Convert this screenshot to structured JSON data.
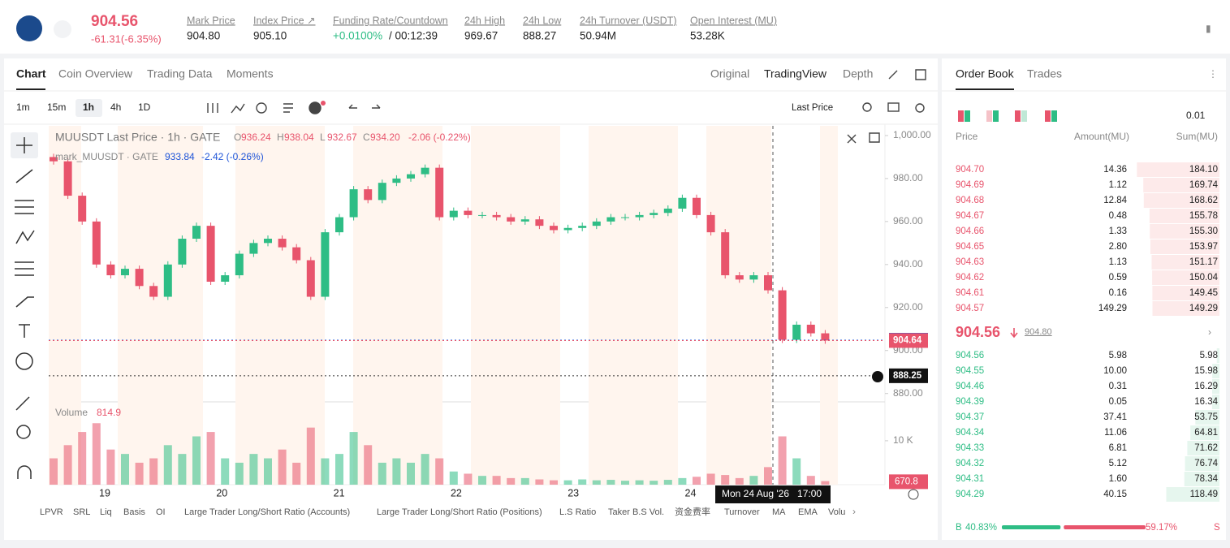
{
  "header": {
    "symbol_price": "904.56",
    "change": "-61.31(-6.35%)",
    "stats": [
      {
        "label": "Mark Price",
        "value": "904.80"
      },
      {
        "label": "Index Price ↗",
        "value": "905.10"
      },
      {
        "label": "Funding Rate/Countdown",
        "value": "+0.0100%",
        "extra": "/ 00:12:39"
      },
      {
        "label": "24h High",
        "value": "969.67"
      },
      {
        "label": "24h Low",
        "value": "888.27"
      },
      {
        "label": "24h Turnover (USDT)",
        "value": "50.94M"
      },
      {
        "label": "Open Interest (MU)",
        "value": "53.28K"
      }
    ]
  },
  "tabs": [
    "Chart",
    "Coin Overview",
    "Trading Data",
    "Moments"
  ],
  "views": [
    "Original",
    "TradingView",
    "Depth"
  ],
  "intervals": [
    "1m",
    "15m",
    "1h",
    "4h",
    "1D"
  ],
  "price_type": "Last Price",
  "chart": {
    "legend": "MUUSDT Last Price · 1h · GATE",
    "ohlc": [
      {
        "k": "O",
        "v": "936.24"
      },
      {
        "k": "H",
        "v": "938.04"
      },
      {
        "k": "L",
        "v": "932.67"
      },
      {
        "k": "C",
        "v": "934.20"
      }
    ],
    "change": "-2.06 (-0.22%)",
    "mark_legend": "mark_MUUSDT · GATE",
    "mark_value": "933.84",
    "mark_change": "-2.42 (-0.26%)",
    "open": 990,
    "close": [
      988,
      972,
      960,
      940,
      935,
      938,
      930,
      925,
      940,
      952,
      958,
      932,
      935,
      945,
      950,
      952,
      948,
      942,
      925,
      955,
      962,
      975,
      970,
      978,
      980,
      982,
      985,
      962,
      965,
      963,
      963,
      962,
      960,
      961,
      958,
      956,
      957,
      958,
      960,
      962,
      962,
      963,
      964,
      966,
      971,
      963,
      955,
      935,
      933,
      935,
      928,
      905,
      912,
      908,
      904.64
    ],
    "volume": [
      6000,
      9000,
      12000,
      14000,
      8000,
      7000,
      5000,
      6000,
      9000,
      7000,
      11000,
      12000,
      6000,
      5000,
      7000,
      6000,
      8000,
      5000,
      13000,
      6000,
      7000,
      12000,
      9000,
      5000,
      6000,
      5000,
      7000,
      6000,
      3000,
      2500,
      2000,
      2000,
      1500,
      1500,
      1200,
      1000,
      1000,
      1200,
      1000,
      1100,
      900,
      1000,
      900,
      1100,
      1500,
      1800,
      2500,
      2200,
      1500,
      2000,
      4000,
      11000,
      6000,
      2000,
      814.9
    ],
    "ylim": [
      878,
      1004.5
    ],
    "yticks": [
      {
        "value": 1000,
        "label": "1,000.00"
      },
      {
        "value": 980,
        "label": "980.00"
      },
      {
        "value": 960,
        "label": "960.00"
      },
      {
        "value": 940,
        "label": "940.00"
      },
      {
        "value": 920,
        "label": "920.00"
      },
      {
        "value": 900,
        "label": "900.00"
      },
      {
        "value": 880,
        "label": "880.00"
      }
    ],
    "vlim": [
      0,
      18300
    ],
    "vticks": [
      {
        "value": 10000,
        "label": "10 K"
      }
    ],
    "dates": [
      "19",
      "20",
      "21",
      "22",
      "23",
      "24"
    ],
    "mark_tag": {
      "value": 904.8,
      "label": "904.80"
    },
    "last_tag": {
      "value": 904.64,
      "label": "904.64"
    },
    "cross_tag": {
      "value": 888.25,
      "label": "888.25"
    },
    "volume_title": "Volume",
    "volume_value": "814.9",
    "volume_tag": {
      "value": 670.8,
      "label": "670.8"
    },
    "cross_time": "Mon 24 Aug '26   17:00"
  },
  "indicators": [
    "LPVR",
    "SRL",
    "Liq",
    "Basis",
    "OI",
    "Large Trader Long/Short Ratio (Accounts)",
    "Large Trader Long/Short Ratio (Positions)",
    "L.S Ratio",
    "Taker B.S Vol.",
    "资金费率",
    "Turnover",
    "MA",
    "EMA",
    "Volu"
  ],
  "order_book": {
    "tabs": [
      "Order Book",
      "Trades"
    ],
    "step": "0.01",
    "columns": [
      "Price",
      "Amount(MU)",
      "Sum(MU)"
    ],
    "asks": [
      {
        "price": "904.70",
        "amount": 14.36,
        "sum": 184.1,
        "sum_label": "184.10"
      },
      {
        "price": "904.69",
        "amount": 1.12,
        "sum": 169.74
      },
      {
        "price": "904.68",
        "amount": 12.84,
        "sum": 168.62
      },
      {
        "price": "904.67",
        "amount": 0.48,
        "sum": 155.78
      },
      {
        "price": "904.66",
        "amount": 1.33,
        "sum": 155.3,
        "sum_label": "155.30"
      },
      {
        "price": "904.65",
        "amount": 2.8,
        "amount_label": "2.80",
        "sum": 153.97
      },
      {
        "price": "904.63",
        "amount": 1.13,
        "sum": 151.17
      },
      {
        "price": "904.62",
        "amount": 0.59,
        "sum": 150.04
      },
      {
        "price": "904.61",
        "amount": 0.16,
        "sum": 149.45
      },
      {
        "price": "904.57",
        "amount": 149.29,
        "sum": 149.29
      }
    ],
    "mid": "904.56",
    "mid_mark": "904.80",
    "bids": [
      {
        "price": "904.56",
        "amount": 5.98,
        "sum": 5.98
      },
      {
        "price": "904.55",
        "amount": 10,
        "amount_label": "10.00",
        "sum": 15.98
      },
      {
        "price": "904.46",
        "amount": 0.31,
        "sum": 16.29
      },
      {
        "price": "904.39",
        "amount": 0.05,
        "sum": 16.34
      },
      {
        "price": "904.37",
        "amount": 37.41,
        "sum": 53.75
      },
      {
        "price": "904.34",
        "amount": 11.06,
        "sum": 64.81
      },
      {
        "price": "904.33",
        "amount": 6.81,
        "sum": 71.62
      },
      {
        "price": "904.32",
        "amount": 5.12,
        "sum": 76.74
      },
      {
        "price": "904.31",
        "amount": 1.6,
        "amount_label": "1.60",
        "sum": 78.34
      },
      {
        "price": "904.29",
        "amount": 40.15,
        "sum": 118.49
      }
    ],
    "sum_max": 190,
    "buy": {
      "value": 40.83,
      "label": "40.83%"
    },
    "sell": {
      "value": 59.17,
      "label": "59.17%"
    },
    "buy_letter": "B",
    "sell_letter": "S"
  }
}
